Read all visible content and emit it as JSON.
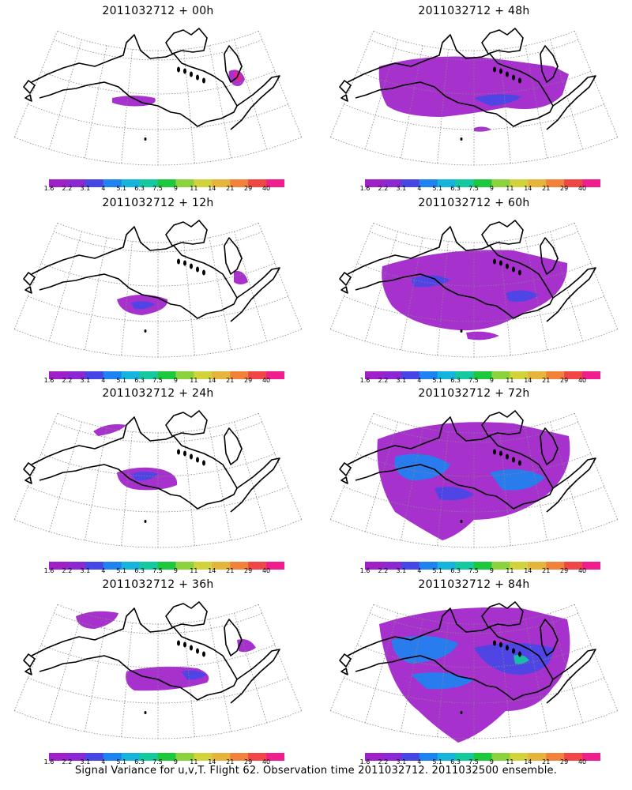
{
  "panels": [
    {
      "title": "2011032712 + 00h"
    },
    {
      "title": "2011032712 + 48h"
    },
    {
      "title": "2011032712 + 12h"
    },
    {
      "title": "2011032712 + 60h"
    },
    {
      "title": "2011032712 + 24h"
    },
    {
      "title": "2011032712 + 72h"
    },
    {
      "title": "2011032712 + 36h"
    },
    {
      "title": "2011032712 + 84h"
    }
  ],
  "colorbar": {
    "labels": [
      "1.6",
      "2.2",
      "3.1",
      "4",
      "5.1",
      "6.3",
      "7.5",
      "9",
      "11",
      "14",
      "21",
      "29",
      "40"
    ],
    "colors": [
      "#a020c8",
      "#8c28d2",
      "#4646e6",
      "#1e82f0",
      "#14b4dc",
      "#14c8a0",
      "#1ec83c",
      "#8cd23c",
      "#d2d23c",
      "#e6b43c",
      "#f0823c",
      "#f04646",
      "#f01e8c"
    ]
  },
  "footer": "Signal Variance for u,v,T. Flight 62. Observation time 2011032712. 2011032500 ensemble."
}
